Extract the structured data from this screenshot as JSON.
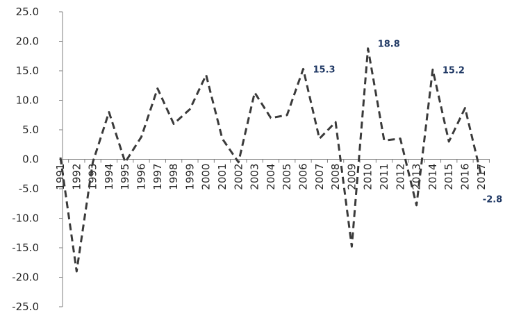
{
  "chart_data": {
    "type": "line",
    "title": "",
    "xlabel": "",
    "ylabel": "",
    "ylim": [
      -25,
      25
    ],
    "y_ticks": [
      "25.0",
      "20.0",
      "15.0",
      "10.0",
      "5.0",
      "0.0",
      "-5.0",
      "-10.0",
      "-15.0",
      "-20.0",
      "-25.0"
    ],
    "categories": [
      "1991",
      "1992",
      "1993",
      "1994",
      "1995",
      "1996",
      "1997",
      "1998",
      "1999",
      "2000",
      "2001",
      "2002",
      "2003",
      "2004",
      "2005",
      "2006",
      "2007",
      "2008",
      "2009",
      "2010",
      "2011",
      "2012",
      "2013",
      "2014",
      "2015",
      "2016",
      "2017"
    ],
    "series": [
      {
        "color": "#3a3a3a",
        "line_style": "dashed",
        "values": [
          0.3,
          -19.0,
          -0.5,
          8.0,
          -0.5,
          3.8,
          12.0,
          6.0,
          8.5,
          14.3,
          3.5,
          -0.5,
          11.3,
          7.0,
          7.5,
          15.3,
          3.5,
          6.3,
          -14.8,
          18.8,
          3.2,
          3.5,
          -7.8,
          15.2,
          3.0,
          8.7,
          -2.8
        ]
      }
    ],
    "data_labels": [
      {
        "category": "2006",
        "text": "15.3"
      },
      {
        "category": "2010",
        "text": "18.8"
      },
      {
        "category": "2014",
        "text": "15.2"
      },
      {
        "category": "2017",
        "text": "-2.8"
      }
    ],
    "grid": false,
    "legend": "none"
  }
}
